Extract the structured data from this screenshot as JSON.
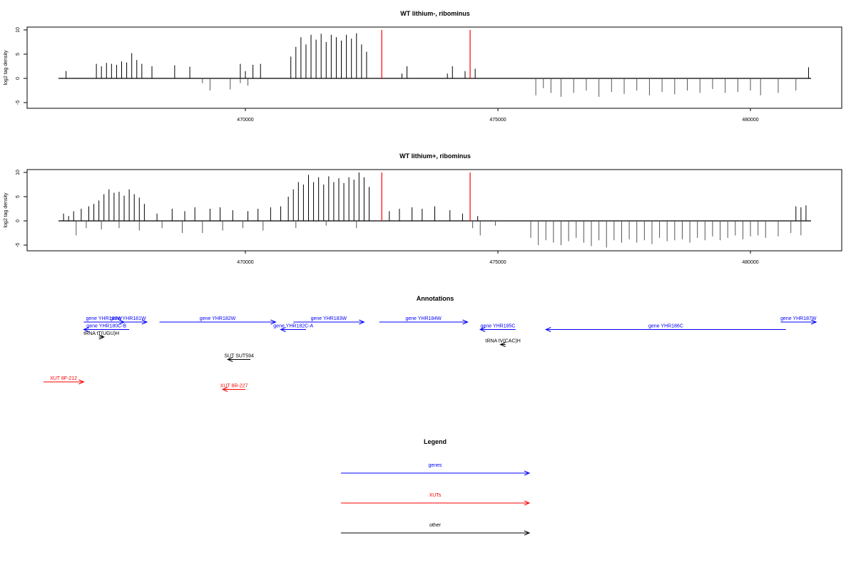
{
  "colors": {
    "plus": "#000000",
    "minus": "#555555",
    "marker": "#ff0000",
    "genes": "#0000ff",
    "xuts": "#ff0000",
    "other": "#000000"
  },
  "chart_data": [
    {
      "type": "bar",
      "title": "WT lithium-, ribominus",
      "ylabel": "log2 tag density",
      "xlim": [
        466300,
        481200
      ],
      "ylim": [
        -5,
        10
      ],
      "xticks": [
        470000,
        475000,
        480000
      ],
      "yticks": [
        -5,
        0,
        5,
        10
      ],
      "grid": false,
      "marker_lines": [
        472700,
        474450
      ],
      "series": [
        {
          "values": [
            [
              466450,
              1.5
            ],
            [
              467050,
              3.0
            ],
            [
              467150,
              2.5
            ],
            [
              467250,
              3.2
            ],
            [
              467350,
              3.0
            ],
            [
              467450,
              2.8
            ],
            [
              467550,
              3.5
            ],
            [
              467650,
              3.3
            ],
            [
              467750,
              5.2
            ],
            [
              467850,
              3.8
            ],
            [
              467950,
              3.0
            ],
            [
              468150,
              2.5
            ],
            [
              468600,
              2.7
            ],
            [
              468900,
              2.4
            ],
            [
              469900,
              3.0
            ],
            [
              470000,
              1.5
            ],
            [
              470150,
              2.8
            ],
            [
              470300,
              3.0
            ],
            [
              470900,
              4.5
            ],
            [
              471000,
              6.5
            ],
            [
              471100,
              8.5
            ],
            [
              471200,
              7.0
            ],
            [
              471300,
              9.0
            ],
            [
              471400,
              8.0
            ],
            [
              471500,
              9.2
            ],
            [
              471600,
              7.5
            ],
            [
              471700,
              9.0
            ],
            [
              471800,
              8.5
            ],
            [
              471900,
              7.8
            ],
            [
              472000,
              9.0
            ],
            [
              472100,
              8.2
            ],
            [
              472200,
              9.3
            ],
            [
              472300,
              7.0
            ],
            [
              472400,
              5.5
            ],
            [
              473100,
              1.0
            ],
            [
              473200,
              2.5
            ],
            [
              474000,
              1.0
            ],
            [
              474100,
              2.5
            ],
            [
              474350,
              1.5
            ],
            [
              474550,
              2.0
            ],
            [
              481150,
              2.3
            ]
          ]
        },
        {
          "values": [
            [
              469150,
              -1.0
            ],
            [
              469300,
              -2.5
            ],
            [
              469700,
              -2.3
            ],
            [
              469900,
              -1.0
            ],
            [
              470050,
              -1.5
            ],
            [
              475750,
              -3.5
            ],
            [
              475900,
              -2.0
            ],
            [
              476050,
              -3.0
            ],
            [
              476250,
              -3.8
            ],
            [
              476500,
              -3.0
            ],
            [
              476750,
              -2.5
            ],
            [
              477000,
              -3.8
            ],
            [
              477250,
              -2.8
            ],
            [
              477500,
              -3.2
            ],
            [
              477750,
              -2.5
            ],
            [
              478000,
              -3.5
            ],
            [
              478250,
              -2.8
            ],
            [
              478500,
              -3.3
            ],
            [
              478750,
              -2.5
            ],
            [
              479000,
              -3.0
            ],
            [
              479250,
              -2.2
            ],
            [
              479500,
              -3.0
            ],
            [
              479750,
              -2.8
            ],
            [
              480000,
              -2.5
            ],
            [
              480200,
              -3.5
            ],
            [
              480550,
              -3.0
            ],
            [
              480900,
              -2.5
            ]
          ]
        }
      ]
    },
    {
      "type": "bar",
      "title": "WT lithium+, ribominus",
      "ylabel": "log2 tag density",
      "xlim": [
        466300,
        481200
      ],
      "ylim": [
        -5,
        10
      ],
      "xticks": [
        470000,
        475000,
        480000
      ],
      "yticks": [
        -5,
        0,
        5,
        10
      ],
      "grid": false,
      "marker_lines": [
        472700,
        474450
      ],
      "series": [
        {
          "values": [
            [
              466400,
              1.5
            ],
            [
              466500,
              1.0
            ],
            [
              466600,
              2.0
            ],
            [
              466750,
              2.5
            ],
            [
              466900,
              3.0
            ],
            [
              467000,
              3.5
            ],
            [
              467100,
              4.2
            ],
            [
              467200,
              5.5
            ],
            [
              467300,
              6.5
            ],
            [
              467400,
              5.8
            ],
            [
              467500,
              6.0
            ],
            [
              467600,
              5.2
            ],
            [
              467700,
              6.5
            ],
            [
              467800,
              5.5
            ],
            [
              467900,
              4.8
            ],
            [
              468000,
              3.5
            ],
            [
              468250,
              1.5
            ],
            [
              468550,
              2.5
            ],
            [
              468800,
              2.0
            ],
            [
              469000,
              2.8
            ],
            [
              469300,
              2.5
            ],
            [
              469500,
              2.8
            ],
            [
              469750,
              2.2
            ],
            [
              470050,
              2.0
            ],
            [
              470250,
              2.5
            ],
            [
              470500,
              2.8
            ],
            [
              470700,
              3.0
            ],
            [
              470850,
              5.0
            ],
            [
              470950,
              6.5
            ],
            [
              471050,
              8.0
            ],
            [
              471150,
              7.5
            ],
            [
              471250,
              9.5
            ],
            [
              471350,
              8.0
            ],
            [
              471450,
              9.0
            ],
            [
              471550,
              7.5
            ],
            [
              471650,
              9.2
            ],
            [
              471750,
              8.0
            ],
            [
              471850,
              8.8
            ],
            [
              471950,
              7.8
            ],
            [
              472050,
              9.0
            ],
            [
              472150,
              8.5
            ],
            [
              472250,
              10.0
            ],
            [
              472350,
              9.0
            ],
            [
              472450,
              7.0
            ],
            [
              472850,
              2.0
            ],
            [
              473050,
              2.5
            ],
            [
              473300,
              2.8
            ],
            [
              473500,
              2.5
            ],
            [
              473750,
              3.0
            ],
            [
              474050,
              2.2
            ],
            [
              474300,
              1.5
            ],
            [
              474600,
              1.0
            ],
            [
              480900,
              3.0
            ],
            [
              481000,
              2.8
            ],
            [
              481100,
              3.2
            ]
          ]
        },
        {
          "values": [
            [
              466650,
              -3.0
            ],
            [
              466850,
              -1.5
            ],
            [
              467150,
              -1.8
            ],
            [
              467500,
              -1.5
            ],
            [
              467900,
              -2.0
            ],
            [
              468350,
              -1.5
            ],
            [
              468750,
              -2.5
            ],
            [
              469150,
              -2.5
            ],
            [
              469550,
              -2.0
            ],
            [
              469950,
              -1.5
            ],
            [
              470350,
              -2.0
            ],
            [
              471000,
              -1.5
            ],
            [
              471600,
              -1.0
            ],
            [
              472200,
              -1.5
            ],
            [
              474500,
              -1.5
            ],
            [
              474650,
              -3.0
            ],
            [
              474950,
              -1.0
            ],
            [
              475650,
              -3.5
            ],
            [
              475800,
              -5.0
            ],
            [
              475950,
              -4.0
            ],
            [
              476100,
              -4.5
            ],
            [
              476250,
              -5.0
            ],
            [
              476400,
              -4.2
            ],
            [
              476550,
              -3.5
            ],
            [
              476700,
              -4.5
            ],
            [
              476850,
              -5.2
            ],
            [
              477000,
              -4.0
            ],
            [
              477150,
              -5.5
            ],
            [
              477300,
              -4.0
            ],
            [
              477450,
              -4.5
            ],
            [
              477600,
              -3.8
            ],
            [
              477750,
              -4.5
            ],
            [
              477900,
              -4.0
            ],
            [
              478050,
              -4.8
            ],
            [
              478200,
              -3.5
            ],
            [
              478350,
              -4.2
            ],
            [
              478500,
              -4.0
            ],
            [
              478650,
              -3.8
            ],
            [
              478800,
              -4.5
            ],
            [
              478950,
              -3.5
            ],
            [
              479100,
              -4.0
            ],
            [
              479250,
              -3.2
            ],
            [
              479400,
              -4.0
            ],
            [
              479550,
              -3.5
            ],
            [
              479700,
              -3.0
            ],
            [
              479850,
              -3.8
            ],
            [
              480000,
              -3.2
            ],
            [
              480150,
              -3.0
            ],
            [
              480300,
              -3.5
            ],
            [
              480550,
              -3.2
            ],
            [
              480800,
              -2.5
            ],
            [
              481000,
              -3.0
            ]
          ]
        }
      ]
    }
  ],
  "annotations": {
    "title": "Annotations",
    "items": [
      {
        "label": "gene YHR180W",
        "start": 466800,
        "end": 467600,
        "strand": "+",
        "kind": "genes",
        "row": 0
      },
      {
        "label": "gene YHR181W",
        "start": 467300,
        "end": 468050,
        "strand": "+",
        "kind": "genes",
        "row": 0
      },
      {
        "label": "gene YHR180C-B",
        "start": 466800,
        "end": 467700,
        "strand": "-",
        "kind": "genes",
        "row": 1
      },
      {
        "label": "tRNA tT(UGU)H",
        "start": 467100,
        "end": 467200,
        "strand": "+",
        "kind": "other",
        "row": 2
      },
      {
        "label": "gene YHR182W",
        "start": 468300,
        "end": 470600,
        "strand": "+",
        "kind": "genes",
        "row": 0
      },
      {
        "label": "gene YHR182C-A",
        "start": 470700,
        "end": 471200,
        "strand": "-",
        "kind": "genes",
        "row": 1
      },
      {
        "label": "gene YHR183W",
        "start": 470950,
        "end": 472350,
        "strand": "+",
        "kind": "genes",
        "row": 0
      },
      {
        "label": "gene YHR184W",
        "start": 472650,
        "end": 474400,
        "strand": "+",
        "kind": "genes",
        "row": 0
      },
      {
        "label": "gene YHR185C",
        "start": 474650,
        "end": 475350,
        "strand": "-",
        "kind": "genes",
        "row": 1
      },
      {
        "label": "tRNA tV(CAC)H",
        "start": 475050,
        "end": 475150,
        "strand": "-",
        "kind": "other",
        "row": 3
      },
      {
        "label": "gene YHR186C",
        "start": 475950,
        "end": 480700,
        "strand": "-",
        "kind": "genes",
        "row": 1
      },
      {
        "label": "gene YHR187W",
        "start": 480600,
        "end": 481300,
        "strand": "+",
        "kind": "genes",
        "row": 0
      },
      {
        "label": "SUT SUT594",
        "start": 469650,
        "end": 470100,
        "strand": "-",
        "kind": "other",
        "row": 5
      },
      {
        "label": "XUT 8F-212",
        "start": 466000,
        "end": 466800,
        "strand": "+",
        "kind": "xuts",
        "row": 8
      },
      {
        "label": "XUT 8R-227",
        "start": 469550,
        "end": 470000,
        "strand": "-",
        "kind": "xuts",
        "row": 9
      }
    ]
  },
  "legend": {
    "title": "Legend",
    "items": [
      {
        "label": "genes",
        "kind": "genes"
      },
      {
        "label": "XUTs",
        "kind": "xuts"
      },
      {
        "label": "other",
        "kind": "other"
      }
    ]
  }
}
